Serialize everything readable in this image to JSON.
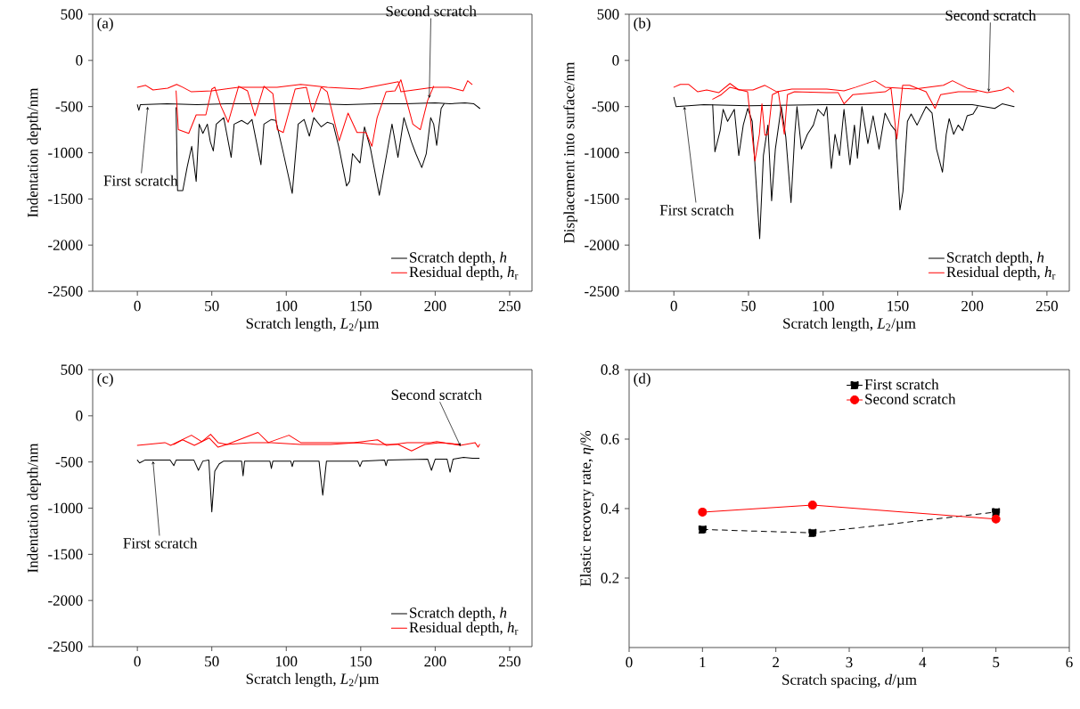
{
  "chart_data": [
    {
      "type": "line",
      "title": "(a)",
      "xlabel": "Scratch length, *L*$_{2}$/µm",
      "ylabel": "Indentation depth/nm",
      "xlim": [
        -30,
        265
      ],
      "ylim": [
        -2500,
        500
      ],
      "xticks": [
        0,
        50,
        100,
        150,
        200,
        250
      ],
      "yticks": [
        -2500,
        -2000,
        -1500,
        -1000,
        -500,
        0,
        500
      ],
      "legend": "bottom right",
      "grid": false,
      "series": [
        {
          "name": "Scratch depth, *h*",
          "color": "#000000",
          "x": [
            0,
            1,
            2,
            20,
            40,
            60,
            80,
            100,
            120,
            140,
            160,
            180,
            200,
            210,
            220,
            226,
            230
          ],
          "values": [
            -480,
            -540,
            -480,
            -470,
            -480,
            -470,
            -470,
            -470,
            -470,
            -480,
            -470,
            -470,
            -460,
            -470,
            -460,
            -470,
            -520
          ]
        },
        {
          "color": "#000000",
          "x": [
            26,
            27,
            30.5,
            33.5,
            36.5,
            39.5,
            41.5,
            44,
            47,
            49,
            51,
            53,
            58,
            63,
            65,
            70,
            74,
            77,
            83,
            85,
            90,
            93,
            98,
            104,
            108,
            112,
            115.5,
            118.5,
            123.5,
            127.5,
            131.5,
            135.5,
            140.5,
            142.5,
            144.5,
            149.5,
            152.5,
            156.5,
            162.5,
            167.5,
            171,
            175,
            179,
            184,
            187,
            191,
            194,
            197,
            199,
            201,
            204,
            206
          ],
          "values": [
            -510,
            -1410,
            -1410,
            -1150,
            -930,
            -1310,
            -690,
            -790,
            -690,
            -880,
            -980,
            -690,
            -620,
            -1050,
            -690,
            -650,
            -690,
            -640,
            -1130,
            -690,
            -640,
            -650,
            -1000,
            -1440,
            -690,
            -640,
            -820,
            -620,
            -720,
            -670,
            -690,
            -950,
            -1360,
            -1310,
            -1010,
            -1110,
            -720,
            -950,
            -1460,
            -1010,
            -690,
            -1050,
            -620,
            -880,
            -1010,
            -1160,
            -1010,
            -620,
            -690,
            -920,
            -520,
            -470
          ]
        },
        {
          "name": "Residual depth, *h*$_{r}$",
          "color": "#ff0000",
          "x": [
            0,
            5.6,
            10.5,
            20.4,
            26.4,
            30.4,
            36.3,
            50,
            68,
            85,
            93.8,
            109.7,
            127.6,
            149.4,
            175.2,
            177,
            199,
            209,
            218.8,
            221.8,
            224.8
          ],
          "values": [
            -290,
            -270,
            -320,
            -300,
            -260,
            -290,
            -340,
            -330,
            -290,
            -290,
            -290,
            -260,
            -290,
            -310,
            -230,
            -340,
            -290,
            -290,
            -330,
            -220,
            -260
          ]
        },
        {
          "color": "#ff0000",
          "x": [
            26,
            27.5,
            34.5,
            39.5,
            46,
            50,
            52,
            56,
            61,
            68,
            74,
            79,
            85,
            91,
            94,
            98,
            106,
            113.5,
            117.5,
            123.5,
            127.5,
            135.5,
            141.5,
            147.5,
            153.5,
            157.5,
            161,
            167,
            173,
            177,
            185,
            190,
            195,
            199
          ],
          "values": [
            -330,
            -750,
            -790,
            -590,
            -590,
            -310,
            -290,
            -490,
            -670,
            -280,
            -330,
            -600,
            -280,
            -360,
            -750,
            -780,
            -310,
            -290,
            -560,
            -290,
            -340,
            -870,
            -570,
            -780,
            -780,
            -930,
            -620,
            -340,
            -330,
            -210,
            -690,
            -750,
            -430,
            -280
          ]
        }
      ],
      "annotations": [
        {
          "text": "First scratch",
          "x": 7,
          "y": -500
        },
        {
          "text": "Second scratch",
          "x": 196,
          "y": -410
        }
      ]
    },
    {
      "type": "line",
      "title": "(b)",
      "xlabel": "Scratch length, *L*$_{2}$/µm",
      "ylabel": "Displacement into surface/nm",
      "xlim": [
        -30,
        265
      ],
      "ylim": [
        -2500,
        500
      ],
      "xticks": [
        0,
        50,
        100,
        150,
        200,
        250
      ],
      "yticks": [
        -2500,
        -2000,
        -1500,
        -1000,
        -500,
        0,
        500
      ],
      "legend": "bottom right",
      "grid": false,
      "series": [
        {
          "name": "Scratch depth, *h*",
          "color": "#000000",
          "x": [
            0,
            1.5,
            20,
            50,
            100,
            150,
            200,
            215,
            220,
            228
          ],
          "values": [
            -400,
            -500,
            -480,
            -490,
            -480,
            -480,
            -480,
            -520,
            -470,
            -500
          ]
        },
        {
          "color": "#000000",
          "x": [
            26,
            27.5,
            31,
            33,
            36,
            40.5,
            43.5,
            46.5,
            49.5,
            52.5,
            57.5,
            60,
            63,
            65.5,
            68,
            72,
            75,
            78.5,
            81,
            82.5,
            85.5,
            89.5,
            93.5,
            96.5,
            100.5,
            102.5,
            105.5,
            108,
            111,
            114,
            118,
            121,
            123,
            126,
            130,
            133.5,
            137.5,
            141.5,
            145.5,
            148.5,
            151.5,
            153.5,
            156.5,
            159,
            163,
            169,
            173,
            176,
            180,
            182.5,
            184.5,
            187.5,
            190.5,
            193.5,
            196.5,
            200.5,
            203.5
          ],
          "values": [
            -480,
            -990,
            -760,
            -530,
            -660,
            -530,
            -1030,
            -700,
            -520,
            -660,
            -1930,
            -1030,
            -700,
            -1520,
            -960,
            -500,
            -830,
            -1540,
            -800,
            -500,
            -960,
            -800,
            -700,
            -530,
            -600,
            -500,
            -1170,
            -800,
            -1030,
            -530,
            -1130,
            -700,
            -1060,
            -500,
            -900,
            -600,
            -960,
            -570,
            -700,
            -760,
            -1620,
            -1420,
            -660,
            -580,
            -700,
            -500,
            -570,
            -960,
            -1210,
            -800,
            -630,
            -800,
            -700,
            -760,
            -600,
            -580,
            -500
          ]
        },
        {
          "name": "Residual depth, *h*$_{r}$",
          "color": "#ff0000",
          "x": [
            0,
            4.3,
            10,
            16,
            22,
            30,
            37.6,
            43.5,
            53,
            61,
            69,
            79,
            89,
            102.5,
            114,
            122,
            134.7,
            141.6,
            161,
            180.6,
            186.7,
            196.5,
            210,
            220,
            224,
            227.8
          ],
          "values": [
            -290,
            -260,
            -260,
            -340,
            -320,
            -350,
            -250,
            -320,
            -320,
            -270,
            -340,
            -310,
            -310,
            -310,
            -330,
            -290,
            -220,
            -290,
            -310,
            -270,
            -220,
            -300,
            -350,
            -320,
            -290,
            -340
          ]
        },
        {
          "color": "#ff0000",
          "x": [
            26,
            31.8,
            37.6,
            49.4,
            54.3,
            57.3,
            59,
            61,
            63.1,
            66,
            70,
            74,
            76.1,
            80.8,
            102.4,
            110.2,
            114,
            120,
            141.6,
            145.5,
            149.4,
            153.3,
            158,
            169,
            175,
            178.8,
            190.6,
            203
          ],
          "values": [
            -420,
            -370,
            -290,
            -340,
            -1090,
            -800,
            -470,
            -810,
            -800,
            -370,
            -340,
            -800,
            -370,
            -340,
            -350,
            -350,
            -470,
            -370,
            -340,
            -300,
            -850,
            -270,
            -270,
            -340,
            -520,
            -370,
            -340,
            -340
          ]
        }
      ],
      "annotations": [
        {
          "text": "First scratch",
          "x": 7,
          "y": -500
        },
        {
          "text": "Second scratch",
          "x": 211,
          "y": -340
        }
      ]
    },
    {
      "type": "line",
      "title": "(c)",
      "xlabel": "Scratch length, *L*$_{2}$/µm",
      "ylabel": "Indentation depth/nm",
      "xlim": [
        -30,
        265
      ],
      "ylim": [
        -2500,
        500
      ],
      "xticks": [
        0,
        50,
        100,
        150,
        200,
        250
      ],
      "yticks": [
        -2500,
        -2000,
        -1500,
        -1000,
        -500,
        0,
        500
      ],
      "legend": "bottom right",
      "grid": false,
      "series": [
        {
          "name": "Scratch depth, *h*",
          "color": "#000000",
          "x": [
            0,
            1.5,
            5,
            22,
            24.5,
            26,
            38,
            41,
            44,
            48,
            50,
            52,
            55,
            58,
            70,
            71,
            72,
            89,
            90,
            91,
            103,
            104,
            105,
            122,
            124.5,
            127,
            148,
            149.5,
            151,
            166,
            167,
            168,
            195,
            197.5,
            200,
            208,
            210,
            212,
            219,
            225,
            229.5
          ],
          "values": [
            -480,
            -510,
            -480,
            -480,
            -540,
            -480,
            -480,
            -590,
            -490,
            -480,
            -1040,
            -600,
            -520,
            -490,
            -490,
            -650,
            -490,
            -490,
            -570,
            -490,
            -490,
            -550,
            -490,
            -490,
            -860,
            -490,
            -490,
            -550,
            -490,
            -480,
            -540,
            -480,
            -470,
            -590,
            -470,
            -470,
            -610,
            -470,
            -450,
            -460,
            -460
          ]
        },
        {
          "name": "Residual depth, *h*$_{r}$",
          "color": "#ff0000",
          "x": [
            0,
            6.3,
            18.5,
            22.4,
            36.3,
            43.3,
            49.2,
            54.2,
            60.1,
            81,
            87.9,
            101.8,
            109.7,
            129.6,
            145.4,
            161.3,
            167.3,
            181.2,
            197,
            201,
            216.9,
            226.8,
            228.8,
            229.8
          ],
          "values": [
            -320,
            -310,
            -290,
            -320,
            -210,
            -280,
            -200,
            -290,
            -310,
            -180,
            -290,
            -210,
            -290,
            -290,
            -290,
            -260,
            -320,
            -290,
            -290,
            -280,
            -320,
            -290,
            -340,
            -310
          ]
        },
        {
          "color": "#ff0000",
          "x": [
            24.4,
            30.4,
            38.3,
            48.2,
            54.2,
            60.1,
            76,
            90,
            109.7,
            129.6,
            147.4,
            161.3,
            175.2,
            184.1,
            193,
            203,
            216.9
          ],
          "values": [
            -310,
            -260,
            -320,
            -240,
            -340,
            -310,
            -290,
            -290,
            -310,
            -310,
            -290,
            -310,
            -310,
            -380,
            -310,
            -290,
            -310
          ]
        }
      ],
      "annotations": [
        {
          "text": "First scratch",
          "x": 10.5,
          "y": -490
        },
        {
          "text": "Second scratch",
          "x": 217,
          "y": -330
        }
      ]
    },
    {
      "type": "line",
      "title": "(d)",
      "xlabel": "Scratch spacing, *d*/µm",
      "ylabel": "Elastic recovery rate, *η*/%",
      "xlim": [
        0,
        6
      ],
      "ylim": [
        0,
        0.8
      ],
      "xticks": [
        0,
        1,
        2,
        3,
        4,
        5,
        6
      ],
      "yticks": [
        0.2,
        0.4,
        0.6,
        0.8
      ],
      "legend": "top",
      "grid": false,
      "series": [
        {
          "name": "First scratch",
          "color": "#000000",
          "marker": "square",
          "line_style": "dashed",
          "x": [
            1,
            2.5,
            5
          ],
          "values": [
            0.34,
            0.33,
            0.39
          ]
        },
        {
          "name": "Second scratch",
          "color": "#ff0000",
          "marker": "circle",
          "line_style": "solid",
          "x": [
            1,
            2.5,
            5
          ],
          "values": [
            0.39,
            0.41,
            0.37
          ]
        }
      ]
    }
  ]
}
